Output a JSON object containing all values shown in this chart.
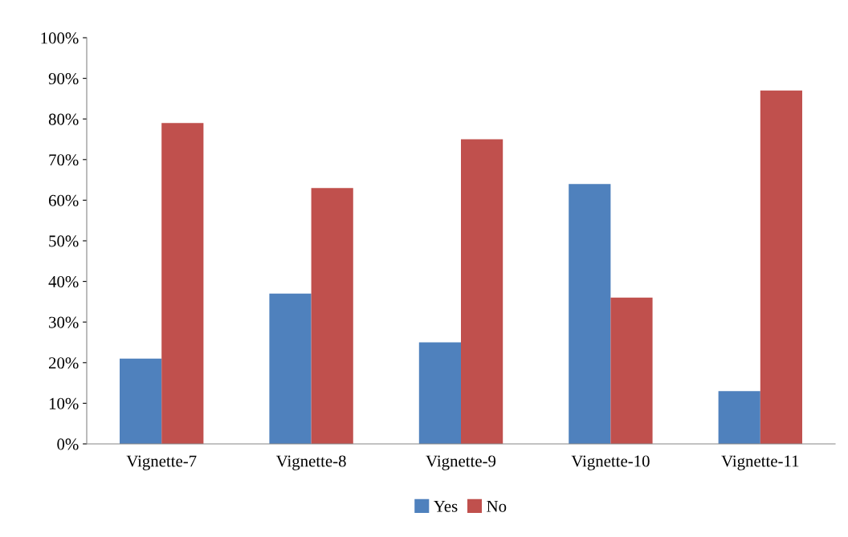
{
  "chart_data": {
    "type": "bar",
    "categories": [
      "Vignette-7",
      "Vignette-8",
      "Vignette-9",
      "Vignette-10",
      "Vignette-11"
    ],
    "series": [
      {
        "name": "Yes",
        "color": "#4f81bd",
        "values": [
          21,
          37,
          25,
          64,
          13
        ]
      },
      {
        "name": "No",
        "color": "#c0504d",
        "values": [
          79,
          63,
          75,
          36,
          87
        ]
      }
    ],
    "ylim": [
      0,
      100
    ],
    "yticks": [
      {
        "value": 0,
        "label": "0%"
      },
      {
        "value": 10,
        "label": "10%"
      },
      {
        "value": 20,
        "label": "20%"
      },
      {
        "value": 30,
        "label": "30%"
      },
      {
        "value": 40,
        "label": "40%"
      },
      {
        "value": 50,
        "label": "50%"
      },
      {
        "value": 60,
        "label": "60%"
      },
      {
        "value": 70,
        "label": "70%"
      },
      {
        "value": 80,
        "label": "80%"
      },
      {
        "value": 90,
        "label": "90%"
      },
      {
        "value": 100,
        "label": "100%"
      }
    ],
    "grid": false,
    "legend": "bottom"
  }
}
